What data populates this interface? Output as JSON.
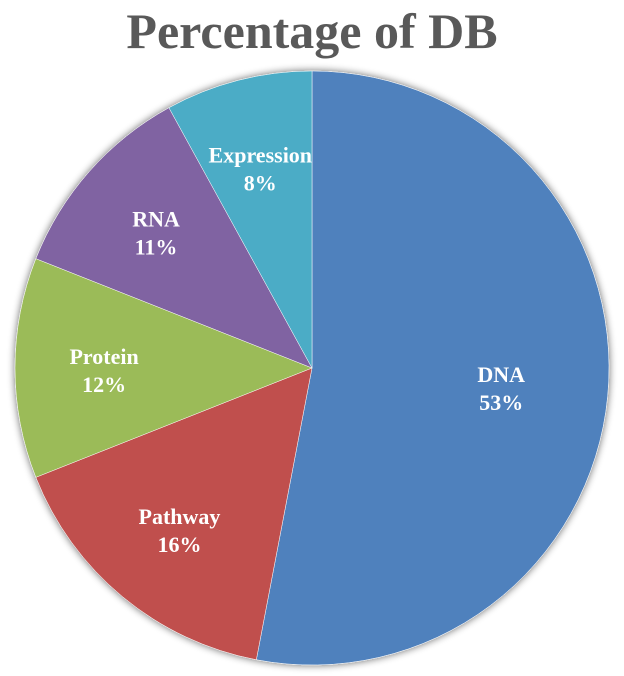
{
  "chart_data": {
    "type": "pie",
    "title": "Percentage of DB",
    "categories": [
      "DNA",
      "Pathway",
      "Protein",
      "RNA",
      "Expression"
    ],
    "values": [
      53,
      16,
      12,
      11,
      8
    ],
    "labels": [
      "53%",
      "16%",
      "12%",
      "11%",
      "8%"
    ],
    "colors": [
      "#4F81BD",
      "#C0504D",
      "#9BBB59",
      "#8064A2",
      "#4BACC6"
    ],
    "start": "top",
    "direction": "clockwise",
    "legend": "none"
  }
}
